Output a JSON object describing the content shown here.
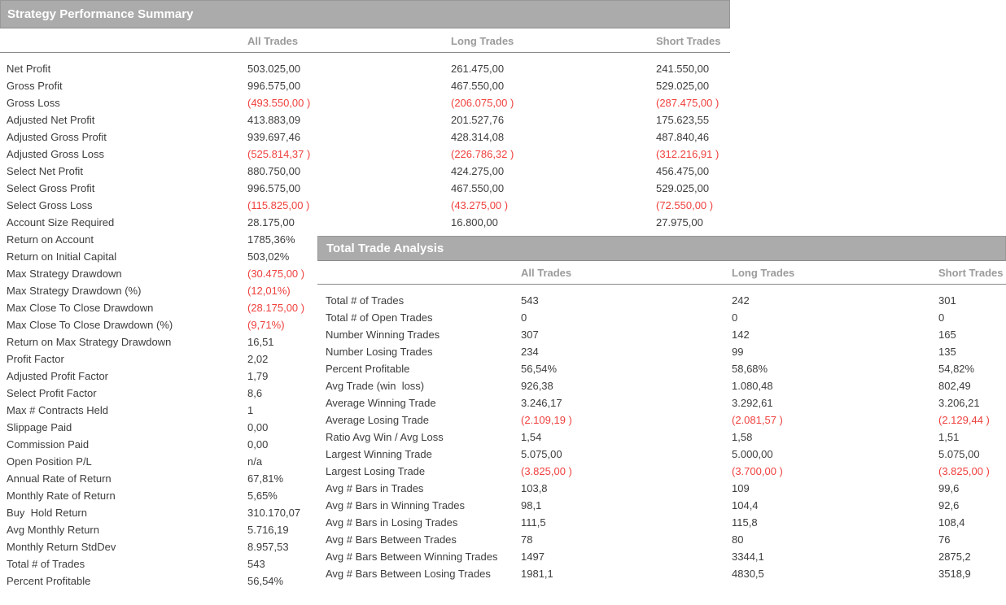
{
  "colors": {
    "header_bar_bg": "#ababab",
    "header_bar_border": "#989898",
    "header_bar_text": "#ffffff",
    "column_header_text": "#9b9b9b",
    "rule_line": "#8a8a8a",
    "row_text": "#3d3d3d",
    "negative_value": "#ef413e"
  },
  "summary": {
    "title": "Strategy Performance Summary",
    "columns": [
      "All Trades",
      "Long Trades",
      "Short Trades"
    ],
    "rows": [
      {
        "label": "Net Profit",
        "all": "503.025,00",
        "long": "261.475,00",
        "short": "241.550,00"
      },
      {
        "label": "Gross Profit",
        "all": "996.575,00",
        "long": "467.550,00",
        "short": "529.025,00"
      },
      {
        "label": "Gross Loss",
        "all": "(493.550,00 )",
        "long": "(206.075,00 )",
        "short": "(287.475,00 )"
      },
      {
        "label": "Adjusted Net Profit",
        "all": "413.883,09",
        "long": "201.527,76",
        "short": "175.623,55"
      },
      {
        "label": "Adjusted Gross Profit",
        "all": "939.697,46",
        "long": "428.314,08",
        "short": "487.840,46"
      },
      {
        "label": "Adjusted Gross Loss",
        "all": "(525.814,37 )",
        "long": "(226.786,32 )",
        "short": "(312.216,91 )"
      },
      {
        "label": "Select Net Profit",
        "all": "880.750,00",
        "long": "424.275,00",
        "short": "456.475,00"
      },
      {
        "label": "Select Gross Profit",
        "all": "996.575,00",
        "long": "467.550,00",
        "short": "529.025,00"
      },
      {
        "label": "Select Gross Loss",
        "all": "(115.825,00 )",
        "long": "(43.275,00 )",
        "short": "(72.550,00 )"
      },
      {
        "label": "Account Size Required",
        "all": "28.175,00",
        "long": "16.800,00",
        "short": "27.975,00"
      },
      {
        "label": "Return on Account",
        "all": "1785,36%"
      },
      {
        "label": "Return on Initial Capital",
        "all": "503,02%"
      },
      {
        "label": "Max Strategy Drawdown",
        "all": "(30.475,00 )"
      },
      {
        "label": "Max Strategy Drawdown (%)",
        "all": "(12,01%)"
      },
      {
        "label": "Max Close To Close Drawdown",
        "all": "(28.175,00 )"
      },
      {
        "label": "Max Close To Close Drawdown (%)",
        "all": "(9,71%)"
      },
      {
        "label": "Return on Max Strategy Drawdown",
        "all": "16,51"
      },
      {
        "label": "Profit Factor",
        "all": "2,02"
      },
      {
        "label": "Adjusted Profit Factor",
        "all": "1,79"
      },
      {
        "label": "Select Profit Factor",
        "all": "8,6"
      },
      {
        "label": "Max # Contracts Held",
        "all": "1"
      },
      {
        "label": "Slippage Paid",
        "all": "0,00"
      },
      {
        "label": "Commission Paid",
        "all": "0,00"
      },
      {
        "label": "Open Position P/L",
        "all": "n/a"
      },
      {
        "label": "Annual Rate of Return",
        "all": "67,81%"
      },
      {
        "label": "Monthly Rate of Return",
        "all": "5,65%"
      },
      {
        "label": "Buy  Hold Return",
        "all": "310.170,07"
      },
      {
        "label": "Avg Monthly Return",
        "all": "5.716,19"
      },
      {
        "label": "Monthly Return StdDev",
        "all": "8.957,53"
      },
      {
        "label": "Total # of Trades",
        "all": "543"
      },
      {
        "label": "Percent Profitable",
        "all": "56,54%"
      }
    ]
  },
  "total_trade_analysis": {
    "title": "Total Trade Analysis",
    "columns": [
      "All Trades",
      "Long Trades",
      "Short Trades"
    ],
    "rows": [
      {
        "label": "Total # of Trades",
        "all": "543",
        "long": "242",
        "short": "301"
      },
      {
        "label": "Total # of Open Trades",
        "all": "0",
        "long": "0",
        "short": "0"
      },
      {
        "label": "Number Winning Trades",
        "all": "307",
        "long": "142",
        "short": "165"
      },
      {
        "label": "Number Losing Trades",
        "all": "234",
        "long": "99",
        "short": "135"
      },
      {
        "label": "Percent Profitable",
        "all": "56,54%",
        "long": "58,68%",
        "short": "54,82%"
      },
      {
        "label": "Avg Trade (win  loss)",
        "all": "926,38",
        "long": "1.080,48",
        "short": "802,49"
      },
      {
        "label": "Average Winning Trade",
        "all": "3.246,17",
        "long": "3.292,61",
        "short": "3.206,21"
      },
      {
        "label": "Average Losing Trade",
        "all": "(2.109,19 )",
        "long": "(2.081,57 )",
        "short": "(2.129,44 )"
      },
      {
        "label": "Ratio Avg Win / Avg Loss",
        "all": "1,54",
        "long": "1,58",
        "short": "1,51"
      },
      {
        "label": "Largest Winning Trade",
        "all": "5.075,00",
        "long": "5.000,00",
        "short": "5.075,00"
      },
      {
        "label": "Largest Losing Trade",
        "all": "(3.825,00 )",
        "long": "(3.700,00 )",
        "short": "(3.825,00 )"
      },
      {
        "label": "Avg # Bars in Trades",
        "all": "103,8",
        "long": "109",
        "short": "99,6"
      },
      {
        "label": "Avg # Bars in Winning Trades",
        "all": "98,1",
        "long": "104,4",
        "short": "92,6"
      },
      {
        "label": "Avg # Bars in Losing Trades",
        "all": "111,5",
        "long": "115,8",
        "short": "108,4"
      },
      {
        "label": "Avg # Bars Between Trades",
        "all": "78",
        "long": "80",
        "short": "76"
      },
      {
        "label": "Avg # Bars Between Winning Trades",
        "all": "1497",
        "long": "3344,1",
        "short": "2875,2"
      },
      {
        "label": "Avg # Bars Between Losing Trades",
        "all": "1981,1",
        "long": "4830,5",
        "short": "3518,9"
      }
    ]
  }
}
